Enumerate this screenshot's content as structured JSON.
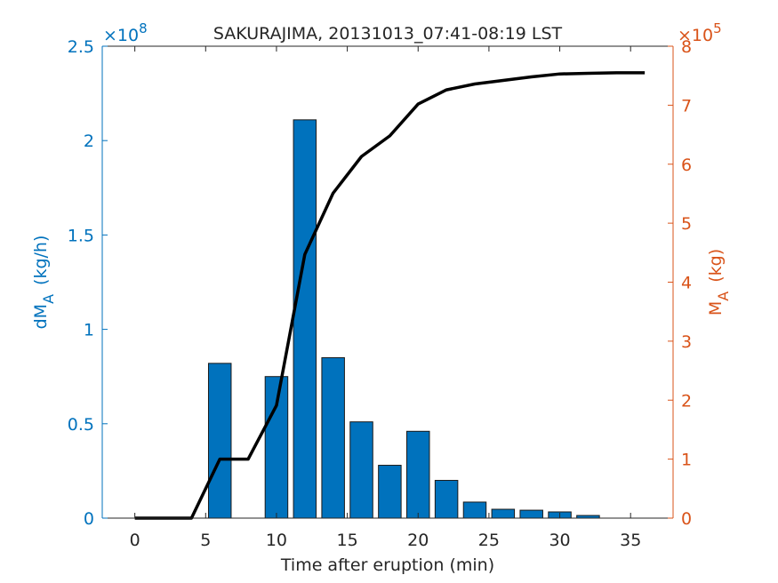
{
  "chart_data": {
    "type": "bar",
    "title": "SAKURAJIMA, 20131013_07:41-08:19 LST",
    "xlabel": "Time after eruption (min)",
    "ylabel": {
      "text": "dM",
      "sub": "A",
      "unit": "(kg/h)"
    },
    "y2label": {
      "text": "M",
      "sub": "A",
      "unit": "(kg)"
    },
    "y_exponent": {
      "base": "×10",
      "power": 8
    },
    "y2_exponent": {
      "base": "×10",
      "power": 5
    },
    "xlim": [
      -2.3,
      38
    ],
    "xticks": [
      0,
      5,
      10,
      15,
      20,
      25,
      30,
      35
    ],
    "ylim": [
      0,
      2.5
    ],
    "yticks": [
      0,
      0.5,
      1,
      1.5,
      2,
      2.5
    ],
    "y2lim": [
      0,
      8
    ],
    "y2ticks": [
      0,
      1,
      2,
      3,
      4,
      5,
      6,
      7,
      8
    ],
    "y_color": "#0072bd",
    "y2_color": "#d95319",
    "series": [
      {
        "type": "bar",
        "color": "#0072bd",
        "x": [
          6,
          8,
          10,
          12,
          14,
          16,
          18,
          20,
          22,
          24,
          26,
          28,
          30,
          32
        ],
        "values": [
          0.82,
          0,
          0.75,
          2.11,
          0.85,
          0.51,
          0.28,
          0.46,
          0.2,
          0.085,
          0.047,
          0.042,
          0.033,
          0.014
        ]
      },
      {
        "type": "line",
        "axis": "y2",
        "color": "#000000",
        "x": [
          0,
          2,
          4,
          6,
          8,
          10,
          12,
          14,
          16,
          18,
          20,
          22,
          24,
          26,
          28,
          30,
          32,
          34,
          36
        ],
        "values": [
          0,
          0,
          0,
          1,
          1,
          1.91,
          4.47,
          5.51,
          6.13,
          6.48,
          7.02,
          7.26,
          7.36,
          7.42,
          7.48,
          7.53,
          7.54,
          7.55,
          7.55
        ]
      }
    ]
  }
}
